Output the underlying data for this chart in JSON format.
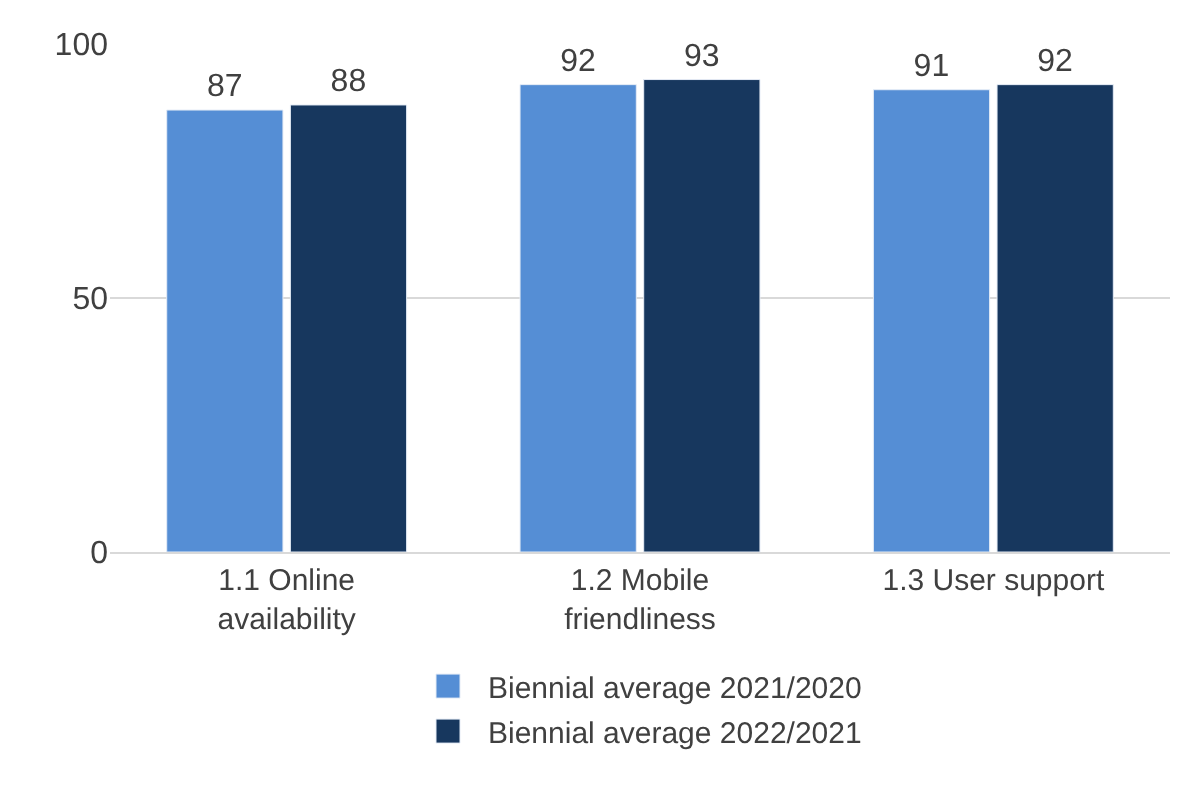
{
  "chart_data": {
    "type": "bar",
    "categories": [
      "1.1 Online availability",
      "1.2 Mobile friendliness",
      "1.3 User support"
    ],
    "series": [
      {
        "name": "Biennial average 2021/2020",
        "color": "#558ed5",
        "values": [
          87,
          92,
          91
        ]
      },
      {
        "name": "Biennial average 2022/2021",
        "color": "#17375e",
        "values": [
          88,
          93,
          92
        ]
      }
    ],
    "ylim": [
      0,
      100
    ],
    "yticks": [
      0,
      50,
      100
    ],
    "grid": "y",
    "legend": "bottom",
    "data_labels": true
  }
}
